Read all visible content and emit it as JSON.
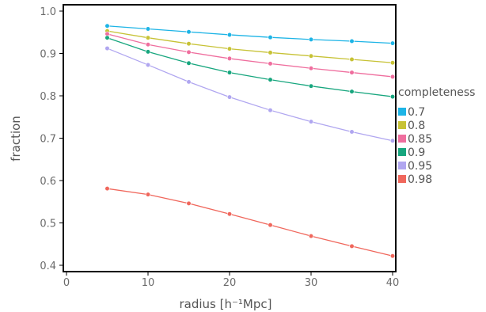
{
  "chart_data": {
    "type": "line",
    "xlabel": "radius [h⁻¹Mpc]",
    "ylabel": "fraction",
    "xlim": [
      0,
      40
    ],
    "ylim": [
      0.4,
      1.0
    ],
    "xticks": [
      0,
      10,
      20,
      30,
      40
    ],
    "yticks": [
      0.4,
      0.5,
      0.6,
      0.7,
      0.8,
      0.9,
      1.0
    ],
    "x": [
      5,
      10,
      15,
      20,
      25,
      30,
      35,
      40
    ],
    "legend": {
      "title": "completeness",
      "placement": "right"
    },
    "grid": false,
    "series": [
      {
        "name": "0.7",
        "color": "#1db4e6",
        "values": [
          0.965,
          0.958,
          0.951,
          0.944,
          0.938,
          0.933,
          0.929,
          0.924
        ]
      },
      {
        "name": "0.8",
        "color": "#c7c235",
        "values": [
          0.953,
          0.937,
          0.923,
          0.911,
          0.902,
          0.894,
          0.886,
          0.878
        ]
      },
      {
        "name": "0.85",
        "color": "#ef6e9e",
        "values": [
          0.946,
          0.921,
          0.903,
          0.888,
          0.876,
          0.865,
          0.855,
          0.845
        ]
      },
      {
        "name": "0.9",
        "color": "#17a67e",
        "values": [
          0.937,
          0.904,
          0.877,
          0.855,
          0.838,
          0.823,
          0.81,
          0.798
        ]
      },
      {
        "name": "0.95",
        "color": "#b0a6f0",
        "values": [
          0.912,
          0.873,
          0.833,
          0.797,
          0.766,
          0.739,
          0.715,
          0.694
        ]
      },
      {
        "name": "0.98",
        "color": "#f0675c",
        "values": [
          0.581,
          0.567,
          0.546,
          0.521,
          0.495,
          0.469,
          0.445,
          0.422
        ]
      }
    ]
  }
}
